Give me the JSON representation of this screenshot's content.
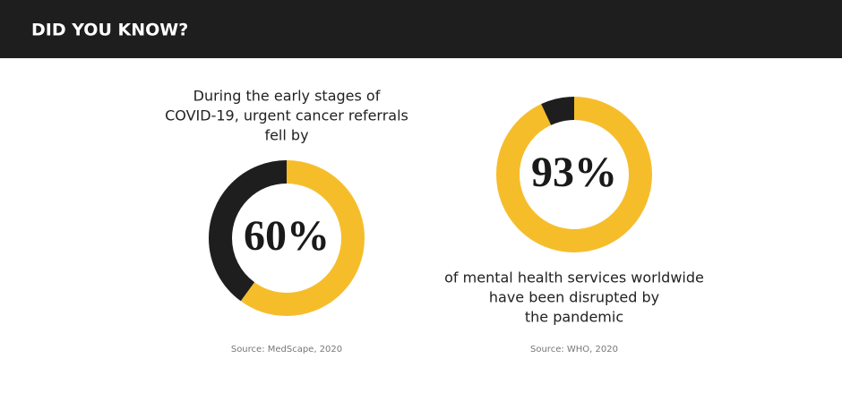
{
  "header": {
    "title": "DID YOU KNOW?"
  },
  "chart_data": [
    {
      "type": "donut",
      "caption": [
        "During the early stages of",
        "COVID-19, urgent cancer referrals",
        "fell by"
      ],
      "values": [
        60,
        40
      ],
      "value_labels": [
        "60%",
        null
      ],
      "colors": [
        "#f6bd2b",
        "#1e1e1e"
      ],
      "source": "Source: MedScape, 2020"
    },
    {
      "type": "donut",
      "caption": [
        "of mental health services worldwide",
        "have been disrupted by",
        "the pandemic"
      ],
      "values": [
        93,
        7
      ],
      "value_labels": [
        "93%",
        null
      ],
      "colors": [
        "#f6bd2b",
        "#1e1e1e"
      ],
      "source": "Source: WHO, 2020"
    }
  ]
}
